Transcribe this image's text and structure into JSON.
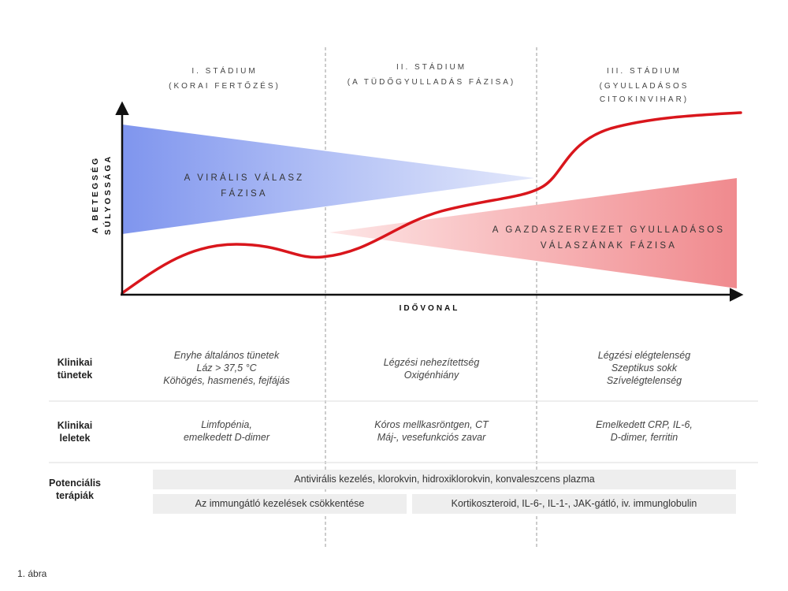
{
  "stages": [
    {
      "title": "I. STÁDIUM",
      "subtitle": [
        "(KORAI FERTŐZÉS)"
      ]
    },
    {
      "title": "II. STÁDIUM",
      "subtitle": [
        "(A TÜDŐGYULLADÁS FÁZISA)"
      ]
    },
    {
      "title": "III. STÁDIUM",
      "subtitle": [
        "(GYULLADÁSOS",
        "CITOKINVIHAR)"
      ]
    }
  ],
  "y_axis_label": [
    "A BETEGSÉG",
    "SÚLYOSSÁGA"
  ],
  "x_axis_label": "IDŐVONAL",
  "phases": {
    "viral": [
      "A VIRÁLIS VÁLASZ",
      "FÁZISA"
    ],
    "host": [
      "A GAZDASZERVEZET GYULLADÁSOS",
      "VÁLASZÁNAK FÁZISA"
    ]
  },
  "colors": {
    "viral_fill": "#7f95ee",
    "host_fill": "#f08a8e",
    "severity_curve": "#d9161c",
    "axis": "#111111",
    "divider": "#999999"
  },
  "rows": {
    "symptoms": {
      "label": [
        "Klinikai",
        "tünetek"
      ],
      "cells": [
        [
          "Enyhe általános tünetek",
          "Láz > 37,5 °C",
          "Köhögés, hasmenés, fejfájás"
        ],
        [
          "Légzési nehezítettség",
          "Oxigénhiány"
        ],
        [
          "Légzési elégtelenség",
          "Szeptikus sokk",
          "Szívelégtelenség"
        ]
      ]
    },
    "findings": {
      "label": [
        "Klinikai",
        "leletek"
      ],
      "cells": [
        [
          "Limfopénia,",
          "emelkedett D-dimer"
        ],
        [
          "Kóros mellkasröntgen, CT",
          "Máj-, vesefunkciós zavar"
        ],
        [
          "Emelkedett CRP, IL-6,",
          "D-dimer, ferritin"
        ]
      ]
    },
    "therapies": {
      "label": [
        "Potenciális",
        "terápiák"
      ],
      "bars": [
        "Antivirális kezelés, klorokvin, hidroxiklorokvin, konvaleszcens plazma",
        "Az immungátló kezelések csökkentése",
        "Kortikoszteroid, IL-6-, IL-1-, JAK-gátló, iv. immunglobulin"
      ]
    }
  },
  "caption": "1. ábra"
}
